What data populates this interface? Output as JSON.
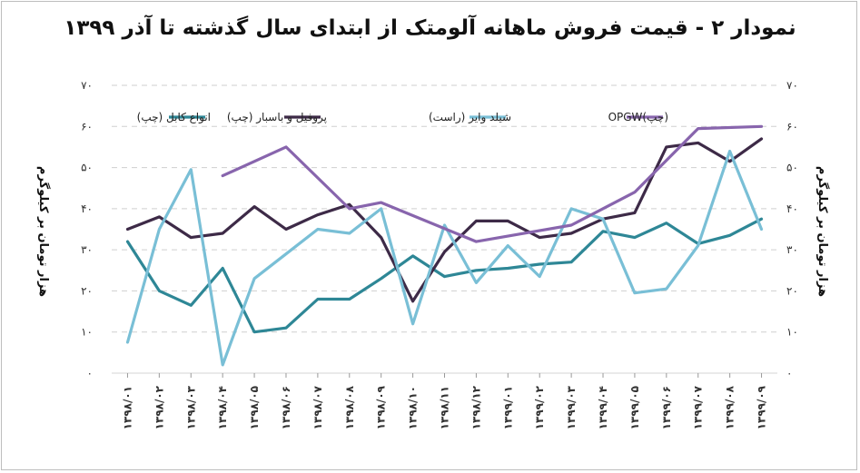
{
  "chart_data": {
    "type": "line",
    "title": "نمودار ۲ - قیمت فروش ماهانه آلومتک از ابتدای سال گذشته تا آذر ۱۳۹۹",
    "ylabel_left": "هزار تومان بر کیلوگرم",
    "ylabel_right": "هزار تومان بر کیلوگرم",
    "ylim": [
      0,
      70
    ],
    "y_ticks": [
      "۰",
      "۱۰",
      "۲۰",
      "۳۰",
      "۴۰",
      "۵۰",
      "۶۰",
      "۷۰"
    ],
    "categories": [
      "۱۳۹۸/۰۱",
      "۱۳۹۸/۰۲",
      "۱۳۹۸/۰۳",
      "۱۳۹۸/۰۴",
      "۱۳۹۸/۰۵",
      "۱۳۹۸/۰۶",
      "۱۳۹۸/۰۷",
      "۱۳۹۸/۰۸",
      "۱۳۹۸/۰۹",
      "۱۳۹۸/۱۰",
      "۱۳۹۸/۱۱",
      "۱۳۹۸/۱۲",
      "۱۳۹۹/۰۱",
      "۱۳۹۹/۰۲",
      "۱۳۹۹/۰۳",
      "۱۳۹۹/۰۴",
      "۱۳۹۹/۰۵",
      "۱۳۹۹/۰۶",
      "۱۳۹۹/۰۷",
      "۱۳۹۹/۰۸",
      "۱۳۹۹/۰۹"
    ],
    "grid": true,
    "legend_position": "top",
    "series": [
      {
        "name": "انواع کابل (چپ)",
        "color": "#2e8796",
        "axis": "left",
        "values": [
          32,
          20,
          16.5,
          25.5,
          10,
          11,
          18,
          18,
          23,
          28.5,
          23.5,
          25,
          25.5,
          26.5,
          27,
          34.5,
          33,
          36.5,
          31.5,
          33.5,
          37.5
        ]
      },
      {
        "name": "پروفیل و باسبار (چپ)",
        "color": "#3d2a47",
        "axis": "left",
        "values": [
          35,
          38,
          33,
          34,
          40.5,
          35,
          38.5,
          41,
          33,
          17.5,
          29.5,
          37,
          37,
          33,
          34,
          37.5,
          39,
          55,
          56,
          51.5,
          57
        ]
      },
      {
        "name": "شیلد وایر (راست)",
        "color": "#79bfd6",
        "axis": "right",
        "values": [
          7.5,
          35,
          49.5,
          2,
          23,
          29,
          35,
          34,
          40,
          12,
          36,
          22,
          31,
          23.5,
          40,
          37.5,
          19.5,
          20.5,
          31,
          54,
          35
        ]
      },
      {
        "name": "OPGW(چپ)",
        "color": "#8865ad",
        "axis": "left",
        "values": [
          null,
          null,
          null,
          48,
          null,
          55,
          null,
          40,
          41.5,
          null,
          null,
          32,
          null,
          null,
          36,
          null,
          44,
          null,
          59.5,
          null,
          60
        ]
      }
    ]
  }
}
